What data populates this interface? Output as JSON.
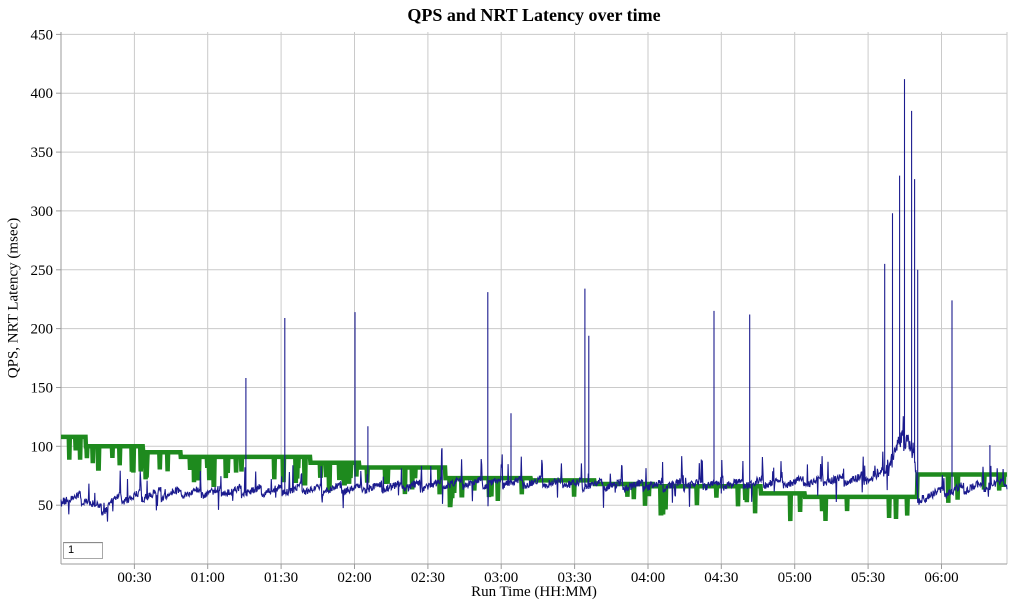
{
  "title": "QPS and NRT Latency over time",
  "page_box": {
    "value": "1"
  },
  "colors": {
    "qps_green": "#1e8a1e",
    "latency_navy": "#1b1b8e",
    "grid": "#cacaca",
    "axis": "#9b9b9b",
    "background": "#ffffff",
    "text": "#000000"
  },
  "chart_data": {
    "type": "line",
    "title": "QPS and NRT Latency over time",
    "xlabel": "Run Time (HH:MM)",
    "ylabel": "QPS, NRT Latency (msec)",
    "x_unit": "minutes",
    "x_range": [
      0,
      386.8
    ],
    "ylim": [
      0,
      452
    ],
    "y_ticks": [
      50,
      100,
      150,
      200,
      250,
      300,
      350,
      400,
      450
    ],
    "x_ticks": [
      {
        "minute": 30,
        "label": "00:30"
      },
      {
        "minute": 60,
        "label": "01:00"
      },
      {
        "minute": 90,
        "label": "01:30"
      },
      {
        "minute": 120,
        "label": "02:00"
      },
      {
        "minute": 150,
        "label": "02:30"
      },
      {
        "minute": 180,
        "label": "03:00"
      },
      {
        "minute": 210,
        "label": "03:30"
      },
      {
        "minute": 240,
        "label": "04:00"
      },
      {
        "minute": 270,
        "label": "04:30"
      },
      {
        "minute": 300,
        "label": "05:00"
      },
      {
        "minute": 330,
        "label": "05:30"
      },
      {
        "minute": 360,
        "label": "06:00"
      }
    ],
    "grid": true,
    "legend": "none",
    "series": [
      {
        "name": "QPS",
        "color": "#1e8a1e",
        "style": "step",
        "stroke_width": 4.5,
        "steps": [
          [
            0,
            108
          ],
          [
            10,
            100
          ],
          [
            33.5,
            95
          ],
          [
            49,
            91
          ],
          [
            102,
            86
          ],
          [
            122,
            82
          ],
          [
            157,
            73
          ],
          [
            192,
            71
          ],
          [
            218,
            68
          ],
          [
            242,
            66
          ],
          [
            286,
            60
          ],
          [
            304,
            57
          ],
          [
            350,
            76
          ],
          [
            386.8,
            76
          ]
        ],
        "dips": {
          "depth_min": 8,
          "depth_max": 24,
          "density_early": 0.055,
          "density_late": 0.035
        }
      },
      {
        "name": "NRT Latency",
        "color": "#1b1b8e",
        "style": "noisy_line",
        "stroke_width": 1.1,
        "baseline": [
          [
            0,
            55
          ],
          [
            8,
            56
          ],
          [
            13,
            51
          ],
          [
            17,
            45
          ],
          [
            21,
            53
          ],
          [
            30,
            57
          ],
          [
            45,
            60
          ],
          [
            60,
            61
          ],
          [
            80,
            62
          ],
          [
            100,
            63
          ],
          [
            120,
            64
          ],
          [
            140,
            66
          ],
          [
            160,
            68
          ],
          [
            180,
            69
          ],
          [
            200,
            69
          ],
          [
            215,
            67
          ],
          [
            232,
            66
          ],
          [
            250,
            67
          ],
          [
            270,
            68
          ],
          [
            290,
            69
          ],
          [
            305,
            69
          ],
          [
            318,
            71
          ],
          [
            328,
            72
          ],
          [
            334,
            74
          ],
          [
            337,
            79
          ],
          [
            339,
            86
          ],
          [
            341,
            95
          ],
          [
            343,
            102
          ],
          [
            345,
            106
          ],
          [
            347,
            102
          ],
          [
            348.5,
            95
          ],
          [
            349.6,
            75
          ],
          [
            350.3,
            52
          ],
          [
            351.5,
            50
          ],
          [
            353,
            57
          ],
          [
            356,
            59
          ],
          [
            360,
            60
          ],
          [
            365,
            62
          ],
          [
            372,
            65
          ],
          [
            378,
            67
          ],
          [
            383,
            68
          ],
          [
            386.8,
            68
          ]
        ],
        "sawtooth": {
          "period_min": 8.2,
          "amplitude": 7
        },
        "noise_amplitude": 3.2,
        "event_window": {
          "start": 336.5,
          "end": 350,
          "noise_amplitude": 8
        },
        "spikes": [
          [
            75.6,
            158
          ],
          [
            91.5,
            209
          ],
          [
            120.2,
            214
          ],
          [
            125.5,
            117
          ],
          [
            174.5,
            231
          ],
          [
            184,
            128
          ],
          [
            214.2,
            234
          ],
          [
            215.8,
            194
          ],
          [
            267,
            215
          ],
          [
            281.6,
            212
          ],
          [
            336.8,
            255
          ],
          [
            340,
            298
          ],
          [
            342.9,
            330
          ],
          [
            344.9,
            412
          ],
          [
            347.8,
            385
          ],
          [
            349,
            327
          ],
          [
            350.3,
            250
          ],
          [
            364.3,
            224
          ],
          [
            379.8,
            101
          ]
        ]
      }
    ]
  }
}
